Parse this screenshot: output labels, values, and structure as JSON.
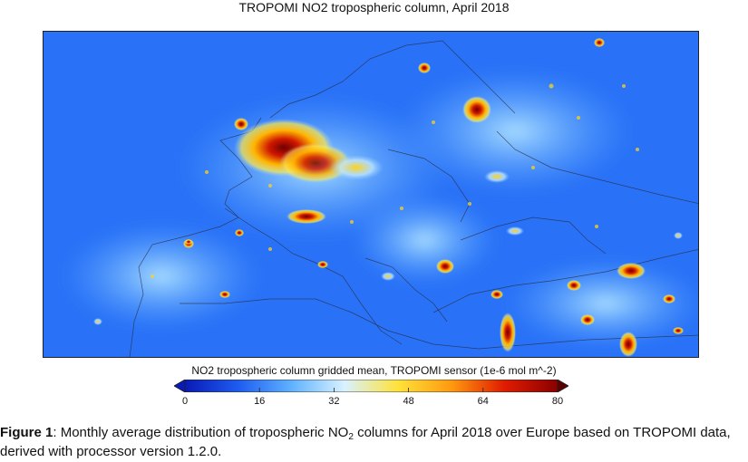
{
  "map": {
    "title": "TROPOMI NO2 tropospheric column, April 2018",
    "region": "Europe",
    "colors": {
      "low": "#1a2fd6",
      "mid": "#4da0ff",
      "high": "#ffd21a",
      "peak": "#7a0000"
    }
  },
  "colorbar": {
    "title": "NO2 tropospheric column gridded mean, TROPOMI sensor (1e-6 mol m^-2)",
    "min": 0,
    "max": 80,
    "ticks": [
      "0",
      "16",
      "32",
      "48",
      "64",
      "80"
    ],
    "colors": [
      "#0a1ab5",
      "#1e5cf0",
      "#5fb2ff",
      "#d8f2ff",
      "#ffe23a",
      "#ff9a10",
      "#e01c00",
      "#8a0000"
    ]
  },
  "caption": {
    "label": "Figure 1",
    "text_before": ":  Monthly average distribution of tropospheric NO",
    "subscript": "2",
    "text_after": " columns for April 2018 over Europe based on TROPOMI data, derived with processor version 1.2.0."
  }
}
